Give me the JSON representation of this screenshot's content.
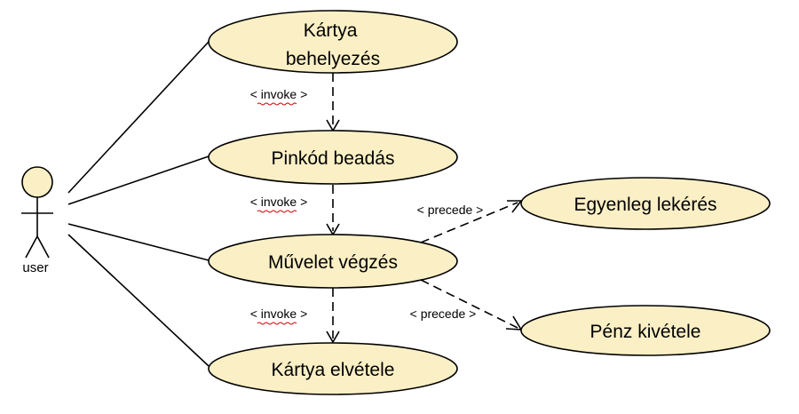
{
  "actor": {
    "name": "user"
  },
  "use_cases": {
    "card_insert": {
      "lines": [
        "Kártya",
        "behelyezés"
      ]
    },
    "pin_entry": {
      "label": "Pinkód beadás"
    },
    "operation": {
      "label": "Művelet végzés"
    },
    "card_removal": {
      "label": "Kártya elvétele"
    },
    "balance_query": {
      "label": "Egyenleg lekérés"
    },
    "withdrawal": {
      "label": "Pénz kivétele"
    }
  },
  "relations": {
    "invoke_1": "< invoke >",
    "invoke_2": "< invoke >",
    "invoke_3": "< invoke >",
    "precede_1": "< precede >",
    "precede_2": "< precede >"
  },
  "colors": {
    "use_case_fill": "#fbefc5",
    "stroke": "#000000"
  }
}
